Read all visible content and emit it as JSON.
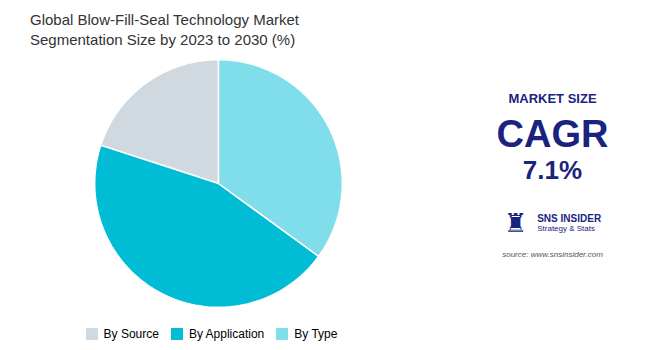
{
  "chart_data": {
    "type": "pie",
    "title": "Global Blow-Fill-Seal Technology Market\nSegmentation Size by 2023 to 2030 (%)",
    "categories": [
      "By Source",
      "By Application",
      "By Type"
    ],
    "values": [
      20,
      45,
      35
    ],
    "colors": [
      "#d0d8e0",
      "#00bcd4",
      "#80deea"
    ],
    "legend": "bottom",
    "annotations": [
      "MARKET SIZE",
      "CAGR",
      "7.1%",
      "♜",
      "SNS INSIDER",
      "Strategy & Stats",
      "source: www.snsinsider.com"
    ]
  }
}
